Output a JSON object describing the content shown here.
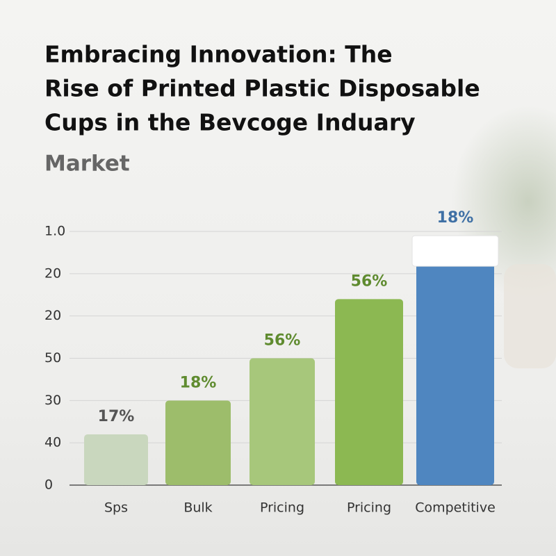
{
  "chart_data": {
    "type": "bar",
    "title": [
      "Embracing Innovation: The",
      "Rise of Printed Plastic Disposable",
      "Cups in the Bevcoge Induary"
    ],
    "subtitle": "Market",
    "categories": [
      "Sps",
      "Bulk",
      "Pricing",
      "Pricing",
      "Competitive"
    ],
    "values": [
      1.2,
      2,
      3,
      4.4,
      5.9
    ],
    "annotations": [
      "17%",
      "18%",
      "56%",
      "56%",
      "18%"
    ],
    "colors": [
      "#c9d7be",
      "#9dbd6b",
      "#a7c77b",
      "#8cb852",
      "#4f86c0"
    ],
    "cap_colors": [
      null,
      null,
      null,
      null,
      "#ffffff"
    ],
    "annotation_colors": [
      "#555555",
      "#5f8b2f",
      "#5f8b2f",
      "#5f8b2f",
      "#3f70a5"
    ],
    "ylim": [
      0,
      6
    ],
    "yticks": [
      {
        "value": 0,
        "label": "0"
      },
      {
        "value": 1,
        "label": "40"
      },
      {
        "value": 2,
        "label": "30"
      },
      {
        "value": 3,
        "label": "50"
      },
      {
        "value": 4,
        "label": "20"
      },
      {
        "value": 5,
        "label": "20"
      },
      {
        "value": 6,
        "label": "1.0"
      }
    ],
    "grid": true
  }
}
